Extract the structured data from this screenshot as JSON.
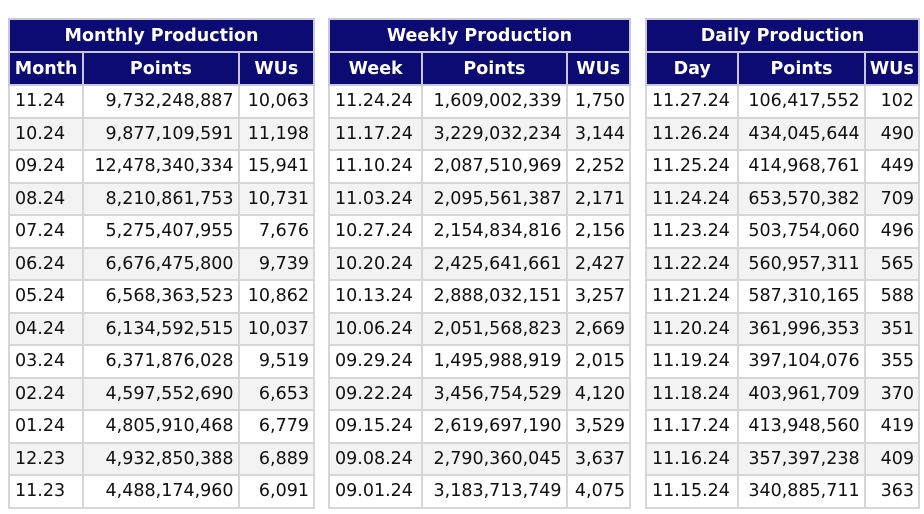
{
  "monthly": {
    "title": "Monthly Production",
    "headers": [
      "Month",
      "Points",
      "WUs"
    ],
    "rows": [
      [
        "11.24",
        "9,732,248,887",
        "10,063"
      ],
      [
        "10.24",
        "9,877,109,591",
        "11,198"
      ],
      [
        "09.24",
        "12,478,340,334",
        "15,941"
      ],
      [
        "08.24",
        "8,210,861,753",
        "10,731"
      ],
      [
        "07.24",
        "5,275,407,955",
        "7,676"
      ],
      [
        "06.24",
        "6,676,475,800",
        "9,739"
      ],
      [
        "05.24",
        "6,568,363,523",
        "10,862"
      ],
      [
        "04.24",
        "6,134,592,515",
        "10,037"
      ],
      [
        "03.24",
        "6,371,876,028",
        "9,519"
      ],
      [
        "02.24",
        "4,597,552,690",
        "6,653"
      ],
      [
        "01.24",
        "4,805,910,468",
        "6,779"
      ],
      [
        "12.23",
        "4,932,850,388",
        "6,889"
      ],
      [
        "11.23",
        "4,488,174,960",
        "6,091"
      ]
    ]
  },
  "weekly": {
    "title": "Weekly Production",
    "headers": [
      "Week",
      "Points",
      "WUs"
    ],
    "rows": [
      [
        "11.24.24",
        "1,609,002,339",
        "1,750"
      ],
      [
        "11.17.24",
        "3,229,032,234",
        "3,144"
      ],
      [
        "11.10.24",
        "2,087,510,969",
        "2,252"
      ],
      [
        "11.03.24",
        "2,095,561,387",
        "2,171"
      ],
      [
        "10.27.24",
        "2,154,834,816",
        "2,156"
      ],
      [
        "10.20.24",
        "2,425,641,661",
        "2,427"
      ],
      [
        "10.13.24",
        "2,888,032,151",
        "3,257"
      ],
      [
        "10.06.24",
        "2,051,568,823",
        "2,669"
      ],
      [
        "09.29.24",
        "1,495,988,919",
        "2,015"
      ],
      [
        "09.22.24",
        "3,456,754,529",
        "4,120"
      ],
      [
        "09.15.24",
        "2,619,697,190",
        "3,529"
      ],
      [
        "09.08.24",
        "2,790,360,045",
        "3,637"
      ],
      [
        "09.01.24",
        "3,183,713,749",
        "4,075"
      ]
    ]
  },
  "daily": {
    "title": "Daily Production",
    "headers": [
      "Day",
      "Points",
      "WUs"
    ],
    "rows": [
      [
        "11.27.24",
        "106,417,552",
        "102"
      ],
      [
        "11.26.24",
        "434,045,644",
        "490"
      ],
      [
        "11.25.24",
        "414,968,761",
        "449"
      ],
      [
        "11.24.24",
        "653,570,382",
        "709"
      ],
      [
        "11.23.24",
        "503,754,060",
        "496"
      ],
      [
        "11.22.24",
        "560,957,311",
        "565"
      ],
      [
        "11.21.24",
        "587,310,165",
        "588"
      ],
      [
        "11.20.24",
        "361,996,353",
        "351"
      ],
      [
        "11.19.24",
        "397,104,076",
        "355"
      ],
      [
        "11.18.24",
        "403,961,709",
        "370"
      ],
      [
        "11.17.24",
        "413,948,560",
        "419"
      ],
      [
        "11.16.24",
        "357,397,238",
        "409"
      ],
      [
        "11.15.24",
        "340,885,711",
        "363"
      ]
    ]
  }
}
